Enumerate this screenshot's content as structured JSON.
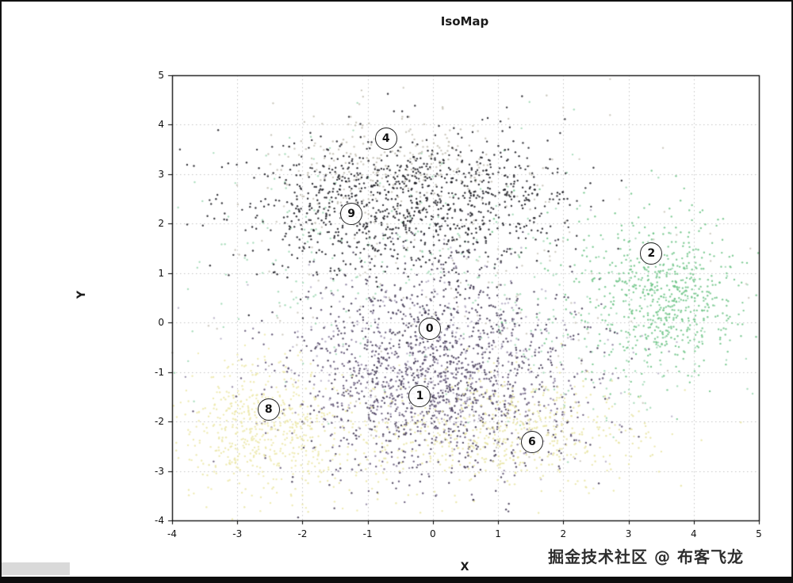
{
  "page": {
    "background": "#ffffff",
    "frame_color": "#111111"
  },
  "watermark": {
    "text": "掘金技术社区 @ 布客飞龙",
    "color": "#2e2e2e"
  },
  "chart_data": {
    "type": "scatter",
    "title": "IsoMap",
    "xlabel": "X",
    "ylabel": "Y",
    "xlim": [
      -4,
      5
    ],
    "ylim": [
      -4,
      5
    ],
    "xticks": [
      -4,
      -3,
      -2,
      -1,
      0,
      1,
      2,
      3,
      4,
      5
    ],
    "yticks": [
      -4,
      -3,
      -2,
      -1,
      0,
      1,
      2,
      3,
      4,
      5
    ],
    "grid": true,
    "grid_style": "dotted",
    "grid_color": "#c4c4c4",
    "axis_color": "#000000",
    "point_style": {
      "radius": 1.2,
      "alpha": 0.85
    },
    "annotations": [
      {
        "label": "4",
        "x": -0.72,
        "y": 3.72
      },
      {
        "label": "9",
        "x": -1.25,
        "y": 2.2
      },
      {
        "label": "2",
        "x": 3.35,
        "y": 1.4
      },
      {
        "label": "0",
        "x": -0.05,
        "y": -0.12
      },
      {
        "label": "1",
        "x": -0.2,
        "y": -1.48
      },
      {
        "label": "8",
        "x": -2.52,
        "y": -1.75
      },
      {
        "label": "6",
        "x": 1.52,
        "y": -2.42
      }
    ],
    "clusters": [
      {
        "name": "digit-0",
        "color": "#3e3550",
        "center": [
          0.1,
          -0.35
        ],
        "sx": 1.0,
        "sy": 0.95,
        "count": 700
      },
      {
        "name": "digit-1",
        "color": "#5b4e70",
        "center": [
          -0.1,
          -1.4
        ],
        "sx": 1.15,
        "sy": 0.8,
        "count": 600
      },
      {
        "name": "digit-1-light",
        "color": "#8c80a0",
        "center": [
          0.2,
          -1.0
        ],
        "sx": 1.2,
        "sy": 0.9,
        "count": 260
      },
      {
        "name": "digit-2",
        "color": "#6fc487",
        "center": [
          3.65,
          0.45
        ],
        "sx": 0.5,
        "sy": 0.75,
        "count": 520
      },
      {
        "name": "digit-2-sparse",
        "color": "#6fc487",
        "center": [
          2.9,
          0.9
        ],
        "sx": 0.85,
        "sy": 0.85,
        "count": 140
      },
      {
        "name": "digit-4",
        "color": "#c2beb2",
        "center": [
          -0.7,
          3.15
        ],
        "sx": 0.95,
        "sy": 0.55,
        "count": 240
      },
      {
        "name": "digit-6",
        "color": "#e8e4a2",
        "center": [
          1.4,
          -2.2
        ],
        "sx": 1.0,
        "sy": 0.55,
        "count": 480
      },
      {
        "name": "digit-8",
        "color": "#ece8a8",
        "center": [
          -2.6,
          -2.05
        ],
        "sx": 0.62,
        "sy": 0.68,
        "count": 540
      },
      {
        "name": "digit-9",
        "color": "#17171f",
        "center": [
          -1.0,
          2.3
        ],
        "sx": 1.0,
        "sy": 0.75,
        "count": 650
      },
      {
        "name": "digit-9b",
        "color": "#17171f",
        "center": [
          0.55,
          2.55
        ],
        "sx": 0.95,
        "sy": 0.65,
        "count": 430
      }
    ],
    "background_clusters": [
      {
        "name": "mint-scatter",
        "color": "#9fd8b4",
        "center": [
          -0.8,
          1.2
        ],
        "sx": 1.9,
        "sy": 1.3,
        "count": 240
      },
      {
        "name": "mint-right",
        "color": "#9fd8b4",
        "center": [
          2.5,
          -0.5
        ],
        "sx": 1.0,
        "sy": 0.9,
        "count": 110
      },
      {
        "name": "gray-scatter",
        "color": "#c9c5ba",
        "center": [
          0.3,
          1.0
        ],
        "sx": 1.9,
        "sy": 1.5,
        "count": 170
      },
      {
        "name": "yellow-band",
        "color": "#e8e4a2",
        "center": [
          -1.1,
          -2.6
        ],
        "sx": 1.5,
        "sy": 0.5,
        "count": 170
      },
      {
        "name": "dark-bottom",
        "color": "#3e3550",
        "center": [
          0.3,
          -2.3
        ],
        "sx": 1.2,
        "sy": 0.6,
        "count": 190
      },
      {
        "name": "lavender-mid",
        "color": "#b5aec6",
        "center": [
          0.0,
          -0.4
        ],
        "sx": 1.5,
        "sy": 1.1,
        "count": 150
      }
    ]
  }
}
